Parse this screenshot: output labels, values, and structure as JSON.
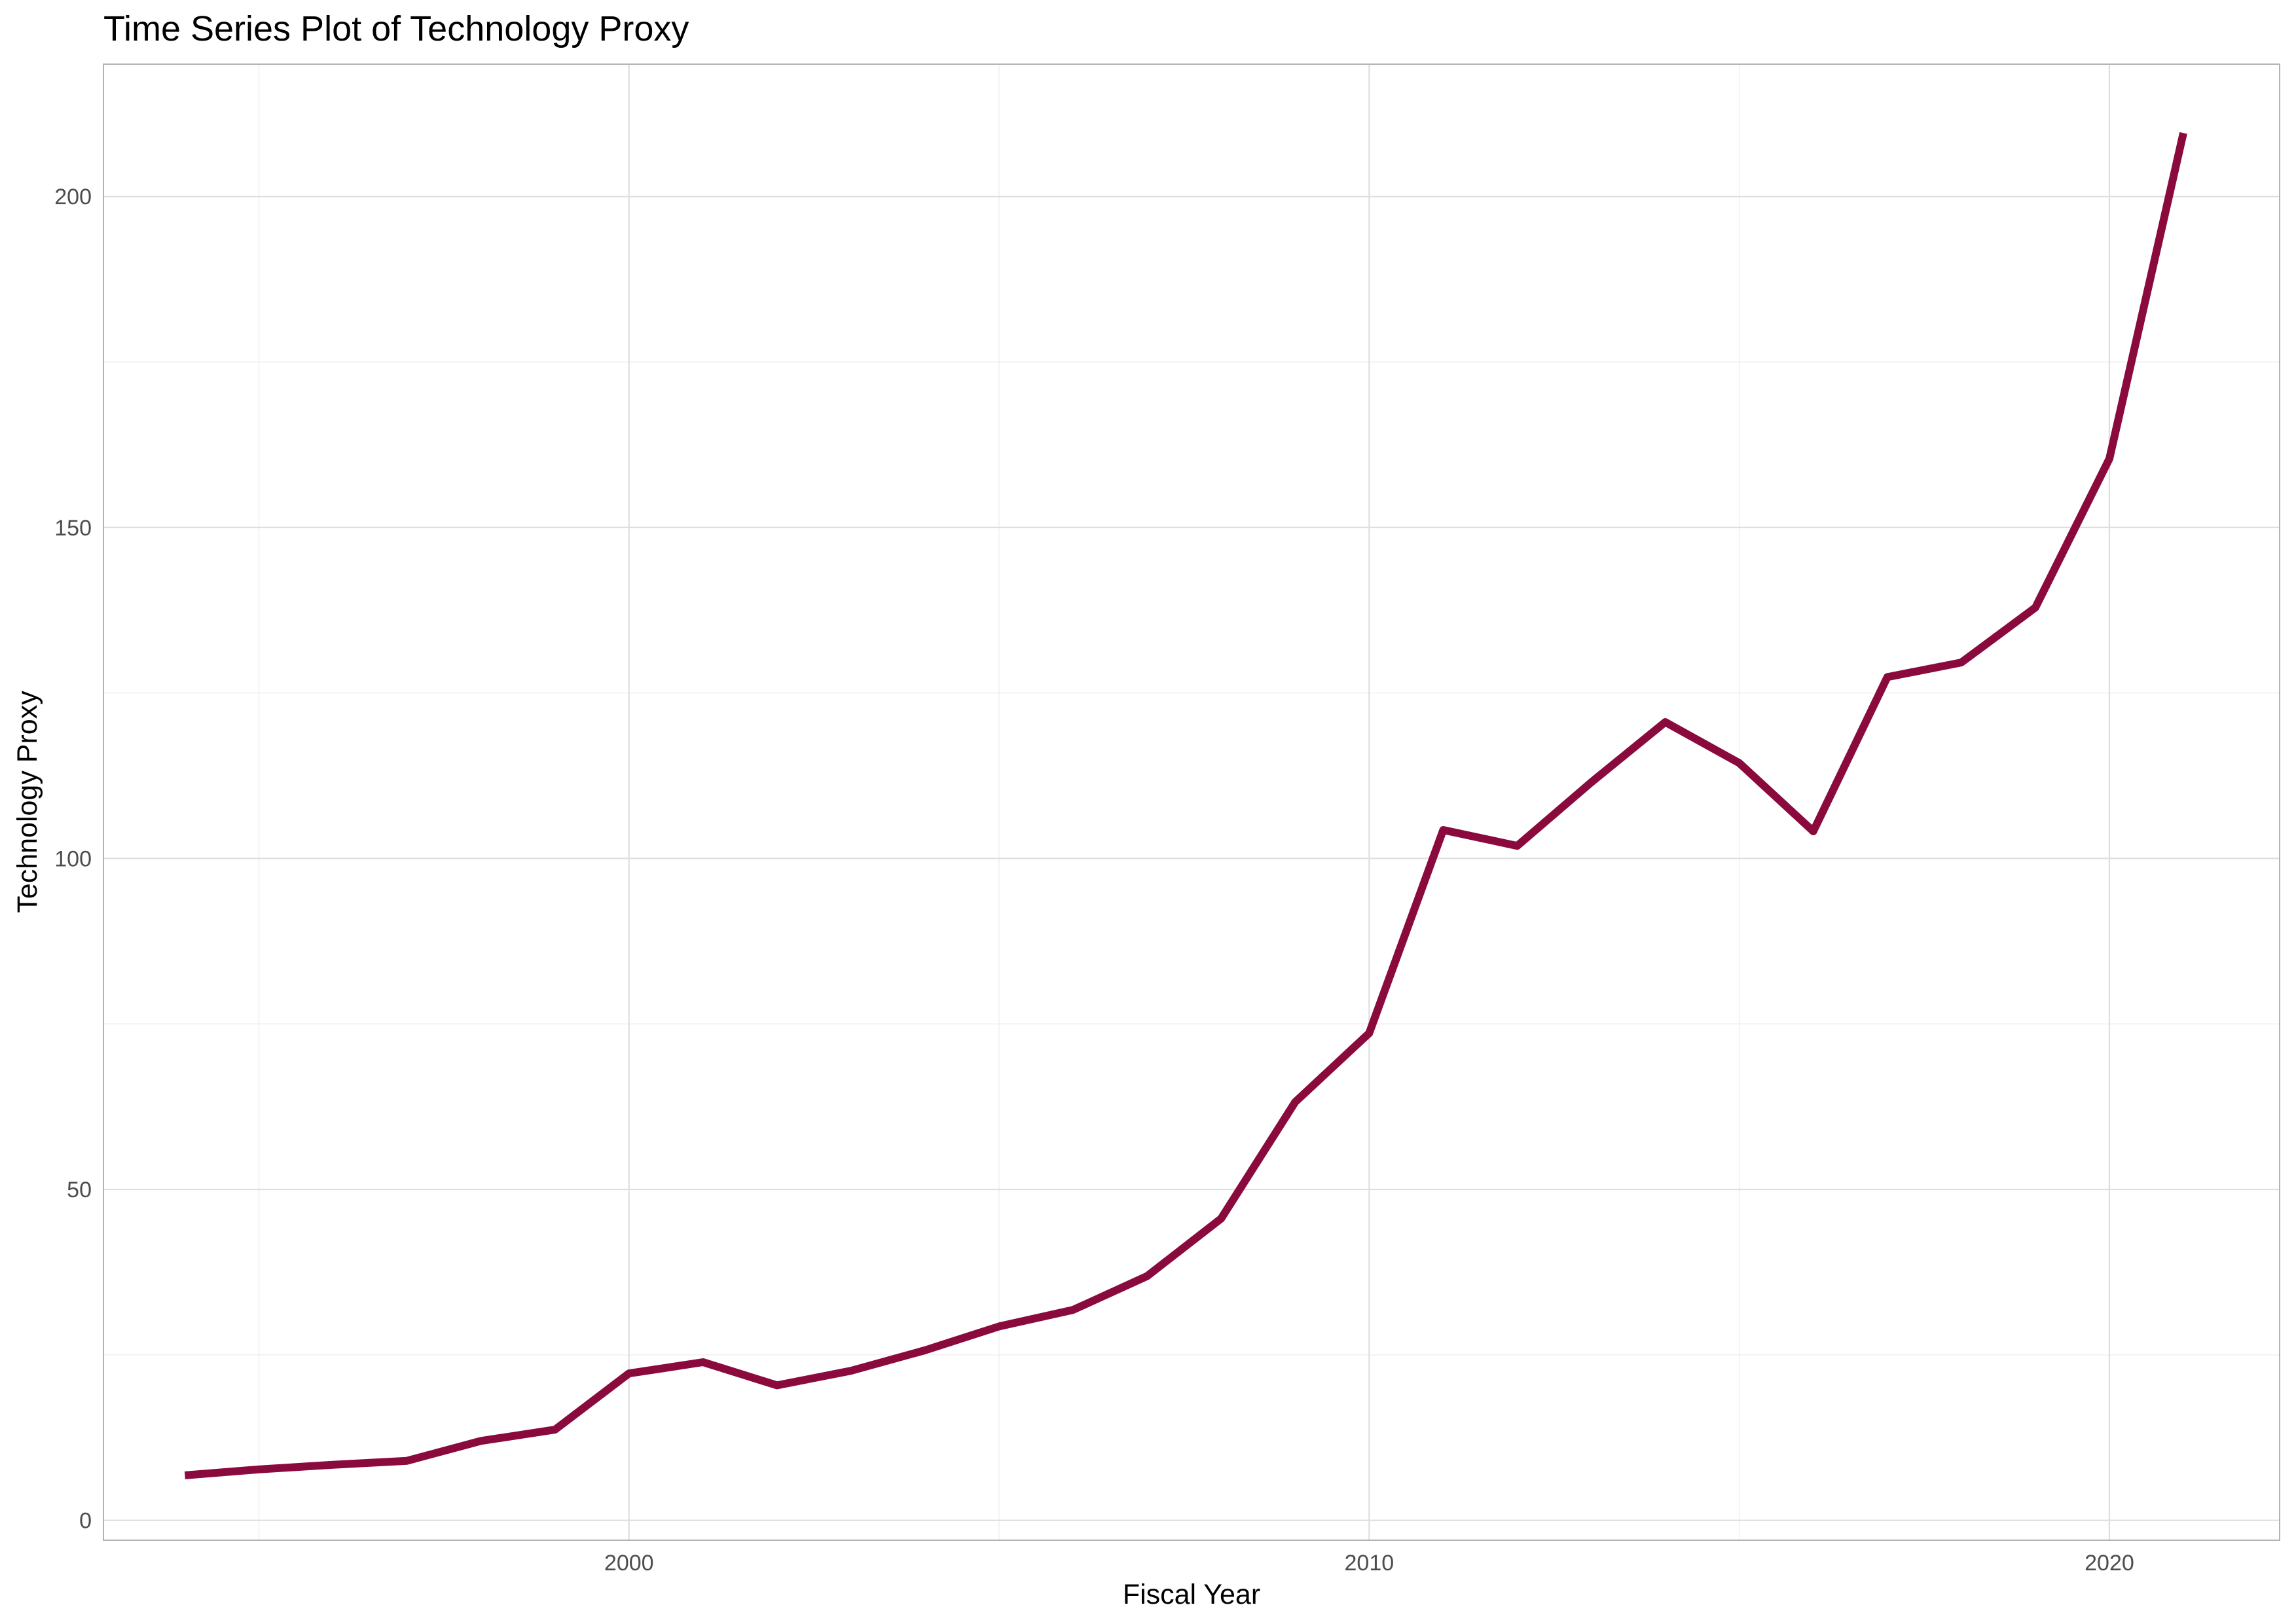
{
  "chart_data": {
    "type": "line",
    "title": "Time Series Plot of Technology Proxy",
    "xlabel": "Fiscal Year",
    "ylabel": "Technology Proxy",
    "xlim": [
      1992.9,
      2022.3
    ],
    "ylim": [
      -3,
      220
    ],
    "x_ticks": [
      2000,
      2010,
      2020
    ],
    "x_minor_ticks": [
      1995,
      2005,
      2015
    ],
    "y_ticks": [
      0,
      50,
      100,
      150,
      200
    ],
    "y_minor_ticks": [
      25,
      75,
      125,
      175
    ],
    "grid": true,
    "legend": "none",
    "series": [
      {
        "color": "#8b0a3e",
        "x": [
          1994,
          1995,
          1996,
          1997,
          1998,
          1999,
          2000,
          2001,
          2002,
          2003,
          2004,
          2005,
          2006,
          2007,
          2008,
          2009,
          2010,
          2011,
          2012,
          2013,
          2014,
          2015,
          2016,
          2017,
          2018,
          2019,
          2020,
          2021
        ],
        "y": [
          6.8,
          7.7,
          8.4,
          9.0,
          12.0,
          13.7,
          22.2,
          23.9,
          20.4,
          22.6,
          25.7,
          29.3,
          31.8,
          36.9,
          45.6,
          63.2,
          73.6,
          104.3,
          101.9,
          111.5,
          120.6,
          114.4,
          104.1,
          127.4,
          129.6,
          137.9,
          160.4,
          209.6
        ]
      }
    ]
  }
}
